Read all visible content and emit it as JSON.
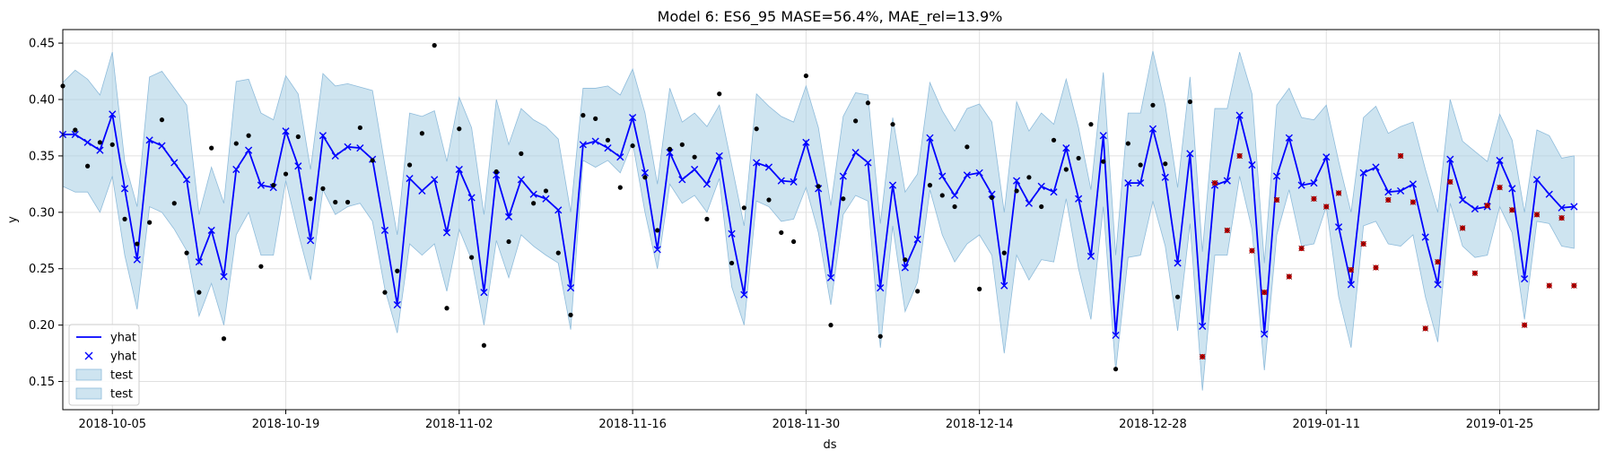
{
  "chart_data": {
    "type": "line",
    "title": "Model 6: ES6_95 MASE=56.4%, MAE_rel=13.9%",
    "xlabel": "ds",
    "ylabel": "y",
    "x_start": "2018-10-01",
    "x_end": "2019-01-31",
    "xlim": [
      "2018-10-01",
      "2019-02-02"
    ],
    "ylim": [
      0.125,
      0.462
    ],
    "x_ticks": [
      "2018-10-05",
      "2018-10-19",
      "2018-11-02",
      "2018-11-16",
      "2018-11-30",
      "2018-12-14",
      "2018-12-28",
      "2019-01-11",
      "2019-01-25"
    ],
    "y_ticks": [
      "0.15",
      "0.20",
      "0.25",
      "0.30",
      "0.35",
      "0.40",
      "0.45"
    ],
    "grid": true,
    "legend_position": "lower-left",
    "legend": [
      {
        "label": "yhat",
        "kind": "line"
      },
      {
        "label": "yhat",
        "kind": "marker"
      },
      {
        "label": "test",
        "kind": "band"
      },
      {
        "label": "test",
        "kind": "band"
      }
    ],
    "colors": {
      "yhat": "#0000ff",
      "band": "#a6cee3",
      "band_edge": "#8fbcdb",
      "train_points": "#000000",
      "test_points": "#cc0000",
      "grid": "#e0e0e0"
    },
    "yhat": [
      0.369,
      0.369,
      0.362,
      0.355,
      0.387,
      0.321,
      0.258,
      0.364,
      0.359,
      0.344,
      0.329,
      0.256,
      0.284,
      0.243,
      0.338,
      0.355,
      0.324,
      0.322,
      0.372,
      0.341,
      0.275,
      0.368,
      0.35,
      0.358,
      0.357,
      0.347,
      0.284,
      0.218,
      0.33,
      0.319,
      0.329,
      0.282,
      0.338,
      0.313,
      0.229,
      0.333,
      0.296,
      0.329,
      0.316,
      0.312,
      0.302,
      0.233,
      0.36,
      0.363,
      0.357,
      0.349,
      0.384,
      0.335,
      0.267,
      0.353,
      0.329,
      0.338,
      0.325,
      0.35,
      0.281,
      0.227,
      0.344,
      0.34,
      0.328,
      0.327,
      0.362,
      0.321,
      0.242,
      0.332,
      0.353,
      0.344,
      0.233,
      0.324,
      0.251,
      0.276,
      0.366,
      0.332,
      0.315,
      0.333,
      0.335,
      0.316,
      0.235,
      0.328,
      0.308,
      0.323,
      0.318,
      0.357,
      0.312,
      0.261,
      0.368,
      0.191,
      0.326,
      0.326,
      0.374,
      0.331,
      0.255,
      0.352,
      0.199,
      0.324,
      0.328,
      0.386,
      0.342,
      0.192,
      0.332,
      0.366,
      0.324,
      0.326,
      0.349,
      0.287,
      0.236,
      0.335,
      0.34,
      0.318,
      0.319,
      0.325,
      0.278,
      0.236,
      0.347,
      0.311,
      0.303,
      0.305,
      0.346,
      0.321,
      0.241,
      0.329,
      0.316,
      0.304,
      0.305
    ],
    "band_upper": [
      0.415,
      0.426,
      0.418,
      0.404,
      0.442,
      0.345,
      0.305,
      0.42,
      0.425,
      0.41,
      0.395,
      0.298,
      0.34,
      0.308,
      0.416,
      0.418,
      0.388,
      0.382,
      0.421,
      0.405,
      0.338,
      0.423,
      0.412,
      0.414,
      0.411,
      0.408,
      0.342,
      0.28,
      0.388,
      0.385,
      0.39,
      0.345,
      0.402,
      0.375,
      0.298,
      0.4,
      0.36,
      0.392,
      0.382,
      0.376,
      0.365,
      0.3,
      0.41,
      0.41,
      0.412,
      0.404,
      0.427,
      0.388,
      0.325,
      0.41,
      0.38,
      0.388,
      0.376,
      0.395,
      0.342,
      0.288,
      0.405,
      0.394,
      0.385,
      0.38,
      0.412,
      0.375,
      0.306,
      0.385,
      0.406,
      0.404,
      0.29,
      0.384,
      0.318,
      0.334,
      0.415,
      0.39,
      0.372,
      0.392,
      0.396,
      0.38,
      0.3,
      0.398,
      0.372,
      0.388,
      0.378,
      0.418,
      0.375,
      0.32,
      0.424,
      0.262,
      0.388,
      0.388,
      0.443,
      0.395,
      0.322,
      0.42,
      0.265,
      0.392,
      0.392,
      0.442,
      0.405,
      0.255,
      0.395,
      0.41,
      0.384,
      0.382,
      0.395,
      0.345,
      0.3,
      0.384,
      0.394,
      0.37,
      0.376,
      0.38,
      0.338,
      0.3,
      0.4,
      0.363,
      0.354,
      0.345,
      0.387,
      0.364,
      0.3,
      0.373,
      0.368,
      0.348,
      0.35
    ],
    "band_lower": [
      0.323,
      0.318,
      0.318,
      0.3,
      0.332,
      0.262,
      0.214,
      0.305,
      0.3,
      0.285,
      0.266,
      0.208,
      0.237,
      0.2,
      0.28,
      0.3,
      0.262,
      0.262,
      0.328,
      0.282,
      0.24,
      0.32,
      0.298,
      0.305,
      0.308,
      0.292,
      0.232,
      0.193,
      0.272,
      0.262,
      0.272,
      0.23,
      0.285,
      0.258,
      0.2,
      0.275,
      0.242,
      0.28,
      0.27,
      0.262,
      0.255,
      0.196,
      0.346,
      0.34,
      0.346,
      0.335,
      0.362,
      0.3,
      0.25,
      0.325,
      0.308,
      0.315,
      0.3,
      0.33,
      0.234,
      0.2,
      0.31,
      0.305,
      0.292,
      0.294,
      0.322,
      0.282,
      0.218,
      0.298,
      0.315,
      0.31,
      0.18,
      0.288,
      0.212,
      0.238,
      0.32,
      0.28,
      0.256,
      0.272,
      0.28,
      0.262,
      0.175,
      0.262,
      0.24,
      0.258,
      0.256,
      0.312,
      0.25,
      0.205,
      0.305,
      0.16,
      0.26,
      0.262,
      0.31,
      0.27,
      0.195,
      0.29,
      0.142,
      0.262,
      0.262,
      0.332,
      0.285,
      0.16,
      0.28,
      0.32,
      0.27,
      0.272,
      0.305,
      0.225,
      0.18,
      0.288,
      0.292,
      0.272,
      0.27,
      0.28,
      0.225,
      0.185,
      0.308,
      0.27,
      0.26,
      0.262,
      0.305,
      0.282,
      0.205,
      0.292,
      0.29,
      0.27,
      0.268
    ],
    "train_points": [
      [
        0,
        0.412
      ],
      [
        1,
        0.373
      ],
      [
        2,
        0.341
      ],
      [
        3,
        0.362
      ],
      [
        4,
        0.36
      ],
      [
        5,
        0.294
      ],
      [
        6,
        0.272
      ],
      [
        7,
        0.291
      ],
      [
        8,
        0.382
      ],
      [
        9,
        0.308
      ],
      [
        10,
        0.264
      ],
      [
        11,
        0.229
      ],
      [
        12,
        0.357
      ],
      [
        13,
        0.188
      ],
      [
        14,
        0.361
      ],
      [
        15,
        0.368
      ],
      [
        16,
        0.252
      ],
      [
        17,
        0.324
      ],
      [
        18,
        0.334
      ],
      [
        19,
        0.367
      ],
      [
        20,
        0.312
      ],
      [
        21,
        0.321
      ],
      [
        22,
        0.309
      ],
      [
        23,
        0.309
      ],
      [
        24,
        0.375
      ],
      [
        25,
        0.346
      ],
      [
        26,
        0.229
      ],
      [
        27,
        0.248
      ],
      [
        28,
        0.342
      ],
      [
        29,
        0.37
      ],
      [
        30,
        0.448
      ],
      [
        31,
        0.215
      ],
      [
        32,
        0.374
      ],
      [
        33,
        0.26
      ],
      [
        34,
        0.182
      ],
      [
        35,
        0.336
      ],
      [
        36,
        0.274
      ],
      [
        37,
        0.352
      ],
      [
        38,
        0.308
      ],
      [
        39,
        0.319
      ],
      [
        40,
        0.264
      ],
      [
        41,
        0.209
      ],
      [
        42,
        0.386
      ],
      [
        43,
        0.383
      ],
      [
        44,
        0.364
      ],
      [
        45,
        0.322
      ],
      [
        46,
        0.359
      ],
      [
        47,
        0.331
      ],
      [
        48,
        0.284
      ],
      [
        49,
        0.356
      ],
      [
        50,
        0.36
      ],
      [
        51,
        0.349
      ],
      [
        52,
        0.294
      ],
      [
        53,
        0.405
      ],
      [
        54,
        0.255
      ],
      [
        55,
        0.304
      ],
      [
        56,
        0.374
      ],
      [
        57,
        0.311
      ],
      [
        58,
        0.282
      ],
      [
        59,
        0.274
      ],
      [
        60,
        0.421
      ],
      [
        61,
        0.323
      ],
      [
        62,
        0.2
      ],
      [
        63,
        0.312
      ],
      [
        64,
        0.381
      ],
      [
        65,
        0.397
      ],
      [
        66,
        0.19
      ],
      [
        67,
        0.378
      ],
      [
        68,
        0.258
      ],
      [
        69,
        0.23
      ],
      [
        70,
        0.324
      ],
      [
        71,
        0.315
      ],
      [
        72,
        0.305
      ],
      [
        73,
        0.358
      ],
      [
        74,
        0.232
      ],
      [
        75,
        0.313
      ],
      [
        76,
        0.264
      ],
      [
        77,
        0.319
      ],
      [
        78,
        0.331
      ],
      [
        79,
        0.305
      ],
      [
        80,
        0.364
      ],
      [
        81,
        0.338
      ],
      [
        82,
        0.348
      ],
      [
        83,
        0.378
      ],
      [
        84,
        0.345
      ],
      [
        85,
        0.161
      ],
      [
        86,
        0.361
      ],
      [
        87,
        0.342
      ],
      [
        88,
        0.395
      ],
      [
        89,
        0.343
      ],
      [
        90,
        0.225
      ],
      [
        91,
        0.398
      ]
    ],
    "test_points": [
      [
        92,
        0.172
      ],
      [
        93,
        0.326
      ],
      [
        94,
        0.284
      ],
      [
        95,
        0.35
      ],
      [
        96,
        0.266
      ],
      [
        97,
        0.229
      ],
      [
        98,
        0.311
      ],
      [
        99,
        0.243
      ],
      [
        100,
        0.268
      ],
      [
        101,
        0.312
      ],
      [
        102,
        0.305
      ],
      [
        103,
        0.317
      ],
      [
        104,
        0.249
      ],
      [
        105,
        0.272
      ],
      [
        106,
        0.251
      ],
      [
        107,
        0.311
      ],
      [
        108,
        0.35
      ],
      [
        109,
        0.309
      ],
      [
        110,
        0.197
      ],
      [
        111,
        0.256
      ],
      [
        112,
        0.327
      ],
      [
        113,
        0.286
      ],
      [
        114,
        0.246
      ],
      [
        115,
        0.306
      ],
      [
        116,
        0.322
      ],
      [
        117,
        0.302
      ],
      [
        118,
        0.2
      ],
      [
        119,
        0.298
      ],
      [
        120,
        0.235
      ],
      [
        121,
        0.295
      ],
      [
        122,
        0.235
      ]
    ]
  }
}
